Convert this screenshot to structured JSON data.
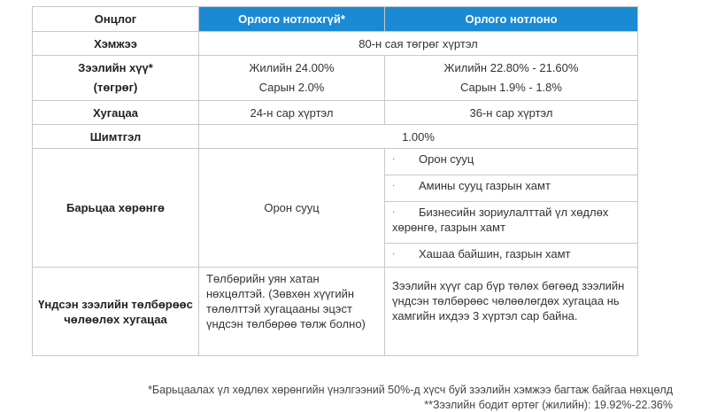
{
  "table": {
    "headers": {
      "param": "Онцлог",
      "no_income": "Орлого нотлохгүй*",
      "income": "Орлого нотлоно"
    },
    "amount": {
      "label": "Хэмжээ",
      "value": "80-н сая төгрөг хүртэл"
    },
    "interest": {
      "label_line1": "Зээлийн хүү*",
      "label_line2": "(төгрөг)",
      "no_income_annual": "Жилийн 24.00%",
      "no_income_monthly": "Сарын 2.0%",
      "income_annual": "Жилийн 22.80% - 21.60%",
      "income_monthly": "Сарын 1.9% - 1.8%"
    },
    "term": {
      "label": "Хугацаа",
      "no_income": "24-н сар хүртэл",
      "income": "36-н сар хүртэл"
    },
    "fee": {
      "label": "Шимтгэл",
      "value": "1.00%"
    },
    "collateral": {
      "label": "Барьцаа хөрөнгө",
      "no_income": "Орон сууц",
      "bullet": "·",
      "income_items": [
        "Орон сууц",
        "Амины сууц газрын хамт",
        "Бизнесийн зориулалттай үл хөдлөх хөрөнгө, газрын хамт",
        "Хашаа байшин, газрын хамт"
      ]
    },
    "grace": {
      "label": "Үндсэн зээлийн төлбөрөөс чөлөөлөх хугацаа",
      "no_income": "Төлбөрийн уян хатан нөхцөлтэй. (Зөвхөн хүүгийн төлөлттэй хугацааны эцэст үндсэн төлбөрөө төлж болно)",
      "income": "Зээлийн хүүг сар бүр төлөх бөгөөд зээлийн үндсэн төлбөрөөс чөлөөлөгдөх хугацаа нь хамгийн ихдээ 3 хүртэл сар байна."
    }
  },
  "footnotes": {
    "note1": "*Барьцаалах үл хөдлөх хөрөнгийн үнэлгээний 50%-д хүсч буй зээлийн хэмжээ багтаж байгаа нөхцөлд",
    "note2": "**Зээлийн бодит өртөг (жилийн): 19.92%-22.36%"
  },
  "colors": {
    "header_blue": "#1a8ad4",
    "border": "#c8c8c8"
  }
}
